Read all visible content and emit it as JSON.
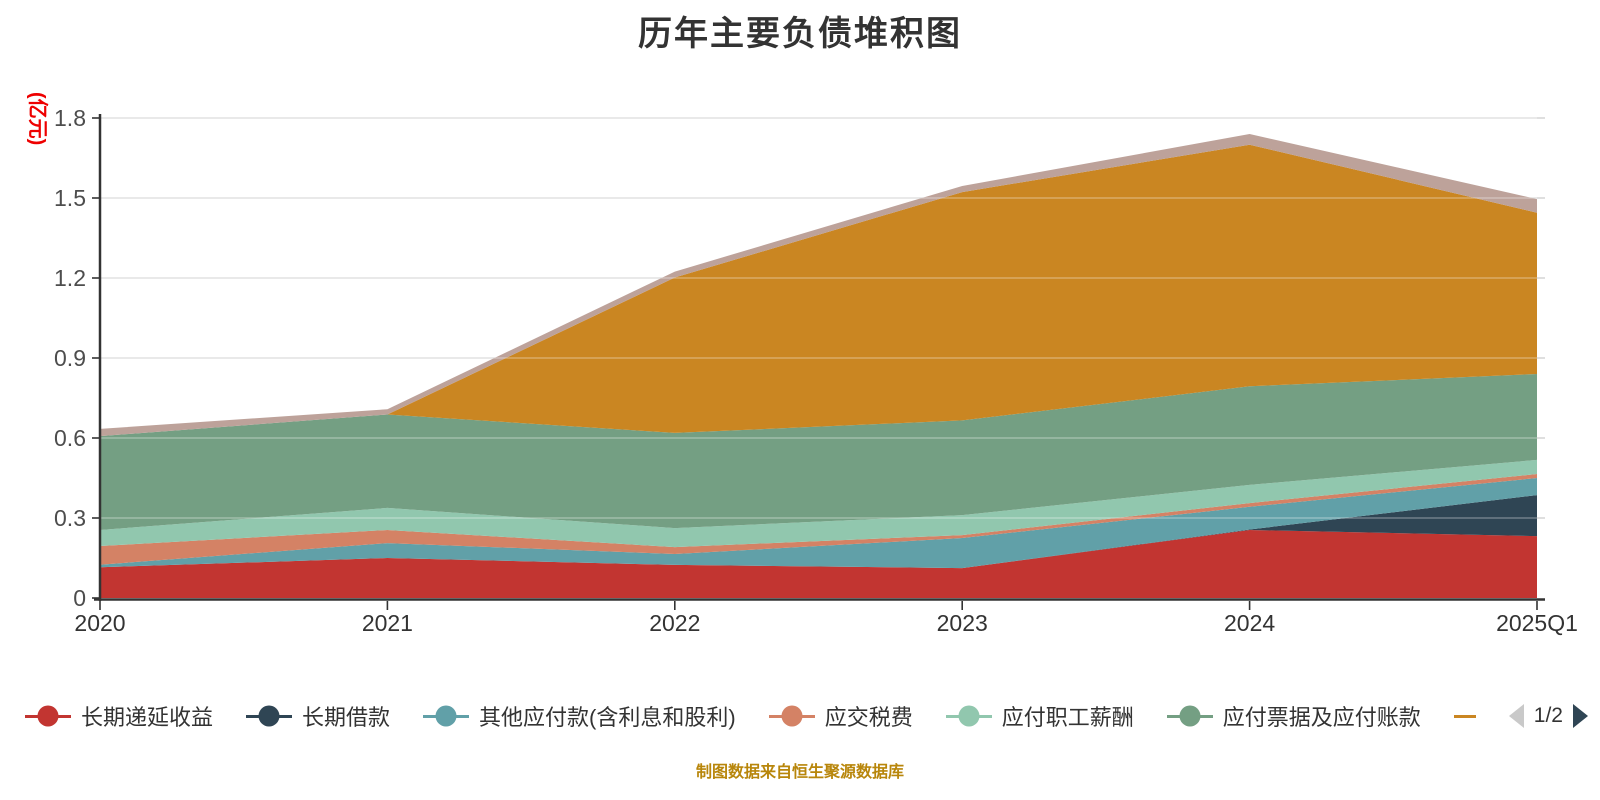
{
  "title": "历年主要负债堆积图",
  "footer": "制图数据来自恒生聚源数据库",
  "footer_color": "#b8860b",
  "y_axis": {
    "name": "(亿元)",
    "name_color": "#ee0000",
    "tick_labels": [
      "0",
      "0.3",
      "0.6",
      "0.9",
      "1.2",
      "1.5",
      "1.8"
    ],
    "tick_values": [
      0,
      0.3,
      0.6,
      0.9,
      1.2,
      1.5,
      1.8
    ]
  },
  "x_axis": {
    "categories": [
      "2020",
      "2021",
      "2022",
      "2023",
      "2024",
      "2025Q1"
    ]
  },
  "legend": {
    "page": "1/2",
    "partial_item_color": "#ca8622",
    "prev_arrow_color": "#c9c9c9",
    "next_arrow_color": "#2f4554"
  },
  "colors": {
    "grid_line": "#cccccc",
    "axis_line": "#333333",
    "x_tick_label": "#333333",
    "y_tick_label": "#4d4d4d",
    "title_text": "#333333"
  },
  "chart_data": {
    "type": "area",
    "stacked": true,
    "title": "历年主要负债堆积图",
    "xlabel": "",
    "ylabel": "(亿元)",
    "ylim": [
      0,
      1.8
    ],
    "ytick_step": 0.3,
    "grid": true,
    "legend_position": "bottom",
    "categories": [
      "2020",
      "2021",
      "2022",
      "2023",
      "2024",
      "2025Q1"
    ],
    "series": [
      {
        "label": "长期递延收益",
        "color": "#c23531",
        "values": [
          0.115,
          0.15,
          0.124,
          0.112,
          0.255,
          0.232
        ]
      },
      {
        "label": "长期借款",
        "color": "#2f4554",
        "values": [
          0,
          0,
          0,
          0,
          0.002,
          0.154
        ]
      },
      {
        "label": "其他应付款(含利息和股利)",
        "color": "#61a0a8",
        "values": [
          0.01,
          0.056,
          0.041,
          0.113,
          0.085,
          0.064
        ]
      },
      {
        "label": "应交税费",
        "color": "#d48265",
        "values": [
          0.07,
          0.049,
          0.026,
          0.011,
          0.014,
          0.015
        ]
      },
      {
        "label": "应付职工薪酬",
        "color": "#91c7ae",
        "values": [
          0.06,
          0.083,
          0.071,
          0.075,
          0.068,
          0.053
        ]
      },
      {
        "label": "应付票据及应付账款",
        "color": "#749f83",
        "values": [
          0.352,
          0.35,
          0.357,
          0.355,
          0.37,
          0.322
        ]
      },
      {
        "label": "",
        "color": "#ca8622",
        "values": [
          0,
          0,
          0.583,
          0.856,
          0.906,
          0.605
        ]
      },
      {
        "label": "",
        "color": "#bda29a",
        "values": [
          0.027,
          0.02,
          0.022,
          0.023,
          0.04,
          0.051
        ]
      }
    ]
  }
}
